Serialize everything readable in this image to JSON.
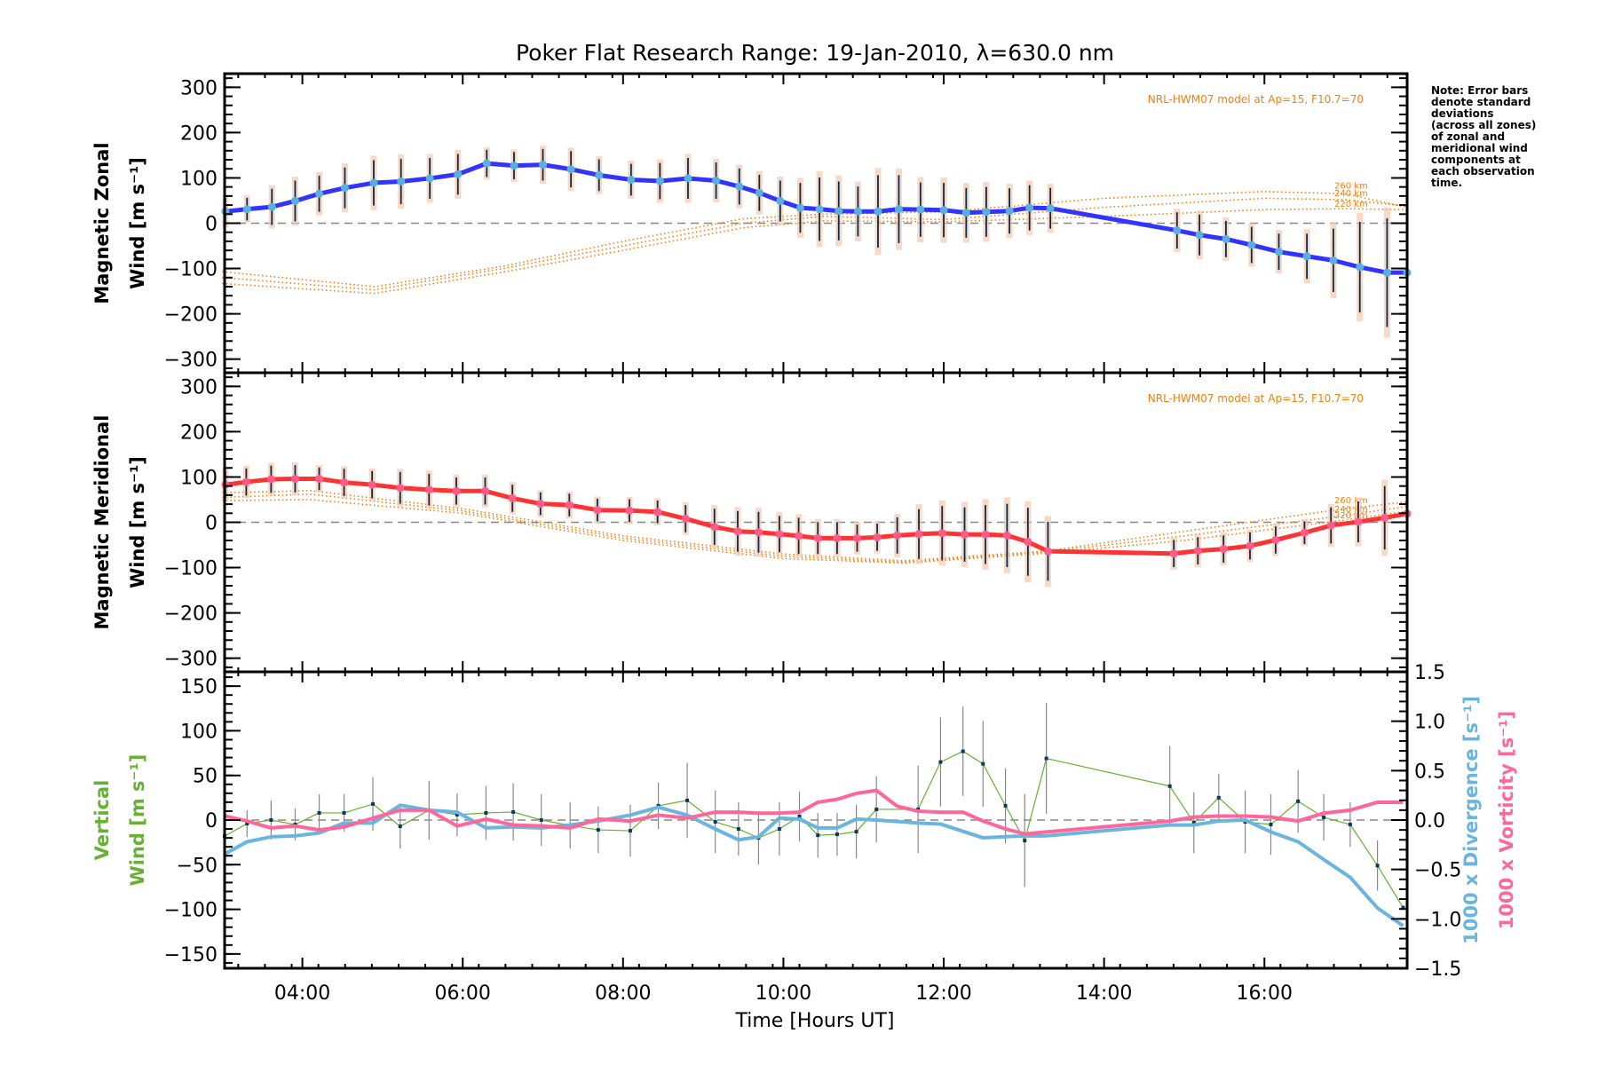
{
  "chart_data": {
    "type": "line",
    "title": "Poker Flat Research Range: 19-Jan-2010, λ=630.0 nm",
    "xlabel": "Time [Hours UT]",
    "xlim": [
      3.03,
      17.78
    ],
    "x_ticks": [
      {
        "value": 4,
        "label": "04:00"
      },
      {
        "value": 6,
        "label": "06:00"
      },
      {
        "value": 8,
        "label": "08:00"
      },
      {
        "value": 10,
        "label": "10:00"
      },
      {
        "value": 12,
        "label": "12:00"
      },
      {
        "value": 14,
        "label": "14:00"
      },
      {
        "value": 16,
        "label": "16:00"
      }
    ],
    "note": [
      "Note: Error bars",
      "denote standard",
      "deviations",
      "(across all zones)",
      "of zonal and",
      "meridional wind",
      "components at",
      "each observation",
      "time."
    ],
    "panels": [
      {
        "id": "zonal",
        "ylabel_lines": [
          "Magnetic Zonal",
          "Wind [m s⁻¹]"
        ],
        "ylabel_color": "#000000",
        "ylim": [
          -330,
          330
        ],
        "y_ticks": [
          300,
          200,
          100,
          0,
          -100,
          -200,
          -300
        ],
        "y_tick_labels": [
          "300",
          "200",
          "100",
          "0",
          "−100",
          "−200",
          "−300"
        ],
        "grid": false,
        "zero_line": true,
        "model_label": "NRL-HWM07 model at Ap=15, F10.7=70",
        "series": [
          {
            "name": "Magnetic Zonal Wind",
            "color": "#3333ff",
            "x": [
              3.04,
              3.31,
              3.62,
              3.91,
              4.21,
              4.53,
              4.89,
              5.23,
              5.59,
              5.94,
              6.3,
              6.64,
              7.0,
              7.35,
              7.7,
              8.1,
              8.46,
              8.81,
              9.16,
              9.45,
              9.7,
              9.96,
              10.21,
              10.45,
              10.69,
              10.93,
              11.18,
              11.44,
              11.71,
              12.0,
              12.28,
              12.53,
              12.82,
              13.07,
              13.33,
              14.91,
              15.19,
              15.52,
              15.84,
              16.18,
              16.53,
              16.86,
              17.19,
              17.53,
              17.78
            ],
            "y": [
              26,
              31,
              36,
              49,
              65,
              78,
              89,
              92,
              99,
              108,
              132,
              127,
              129,
              119,
              106,
              96,
              93,
              99,
              94,
              81,
              67,
              49,
              34,
              31,
              27,
              26,
              26,
              31,
              30,
              29,
              23,
              25,
              27,
              34,
              33,
              -16,
              -26,
              -35,
              -48,
              -63,
              -73,
              -82,
              -97,
              -109,
              -109
            ],
            "err": [
              30,
              25,
              40,
              45,
              40,
              45,
              50,
              50,
              45,
              45,
              30,
              30,
              35,
              40,
              35,
              35,
              40,
              45,
              40,
              40,
              40,
              45,
              55,
              70,
              65,
              55,
              80,
              75,
              60,
              60,
              55,
              55,
              50,
              50,
              45,
              40,
              45,
              40,
              40,
              40,
              50,
              70,
              100,
              120,
              0
            ]
          }
        ],
        "model": [
          {
            "name": "260 km",
            "x": [
              3.0,
              4.9,
              6.5,
              8.0,
              9.5,
              10.5,
              12.0,
              14.0,
              16.0,
              17.0,
              17.78
            ],
            "y": [
              -107,
              -140,
              -95,
              -40,
              10,
              20,
              25,
              55,
              70,
              65,
              35
            ]
          },
          {
            "name": "240 km",
            "x": [
              3.0,
              4.9,
              6.5,
              8.0,
              9.5,
              10.5,
              12.0,
              14.0,
              16.0,
              17.0,
              17.78
            ],
            "y": [
              -120,
              -147,
              -100,
              -50,
              0,
              15,
              8,
              35,
              55,
              52,
              38
            ]
          },
          {
            "name": "220 km",
            "x": [
              3.0,
              4.9,
              6.5,
              8.0,
              9.5,
              10.5,
              12.0,
              14.0,
              16.0,
              17.0,
              17.78
            ],
            "y": [
              -133,
              -155,
              -108,
              -60,
              -10,
              5,
              3,
              15,
              30,
              32,
              30
            ]
          }
        ]
      },
      {
        "id": "meridional",
        "ylabel_lines": [
          "Magnetic Meridional",
          "Wind [m s⁻¹]"
        ],
        "ylabel_color": "#000000",
        "ylim": [
          -330,
          330
        ],
        "y_ticks": [
          300,
          200,
          100,
          0,
          -100,
          -200,
          -300
        ],
        "y_tick_labels": [
          "300",
          "200",
          "100",
          "0",
          "−100",
          "−200",
          "−300"
        ],
        "grid": false,
        "zero_line": true,
        "model_label": "NRL-HWM07 model at Ap=15, F10.7=70",
        "series": [
          {
            "name": "Magnetic Meridional Wind",
            "color": "#ff3333",
            "x": [
              3.04,
              3.3,
              3.61,
              3.91,
              4.21,
              4.52,
              4.87,
              5.22,
              5.58,
              5.92,
              6.28,
              6.62,
              6.97,
              7.33,
              7.68,
              8.08,
              8.43,
              8.78,
              9.14,
              9.43,
              9.69,
              9.95,
              10.19,
              10.43,
              10.67,
              10.92,
              11.17,
              11.42,
              11.69,
              11.98,
              12.26,
              12.52,
              12.79,
              13.05,
              13.3,
              14.87,
              15.17,
              15.49,
              15.82,
              16.14,
              16.5,
              16.83,
              17.17,
              17.5,
              17.78
            ],
            "y": [
              83,
              89,
              95,
              96,
              96,
              88,
              83,
              76,
              72,
              69,
              69,
              53,
              41,
              38,
              27,
              26,
              23,
              8,
              -10,
              -20,
              -22,
              -26,
              -30,
              -35,
              -35,
              -35,
              -33,
              -29,
              -26,
              -24,
              -27,
              -27,
              -29,
              -43,
              -64,
              -69,
              -63,
              -59,
              -52,
              -39,
              -23,
              -7,
              1,
              10,
              19
            ],
            "err": [
              30,
              30,
              30,
              30,
              25,
              30,
              30,
              35,
              35,
              30,
              30,
              30,
              25,
              25,
              25,
              25,
              25,
              30,
              40,
              45,
              45,
              40,
              40,
              35,
              35,
              30,
              30,
              40,
              55,
              60,
              60,
              65,
              70,
              75,
              65,
              30,
              30,
              30,
              30,
              30,
              25,
              40,
              45,
              70,
              0
            ]
          }
        ],
        "model": [
          {
            "name": "260 km",
            "x": [
              3.0,
              4.1,
              6.0,
              8.0,
              10.0,
              11.5,
              13.3,
              15.0,
              17.0,
              17.78
            ],
            "y": [
              65,
              70,
              30,
              -30,
              -70,
              -85,
              -63,
              -20,
              30,
              45
            ]
          },
          {
            "name": "240 km",
            "x": [
              3.0,
              4.1,
              6.0,
              8.0,
              10.0,
              11.5,
              13.3,
              15.0,
              17.0,
              17.78
            ],
            "y": [
              55,
              62,
              25,
              -35,
              -75,
              -88,
              -65,
              -30,
              15,
              35
            ]
          },
          {
            "name": "220 km",
            "x": [
              3.0,
              4.1,
              6.0,
              8.0,
              10.0,
              11.5,
              13.3,
              15.0,
              17.0,
              17.78
            ],
            "y": [
              48,
              50,
              20,
              -40,
              -80,
              -90,
              -68,
              -40,
              5,
              25
            ]
          }
        ]
      },
      {
        "id": "vertical",
        "ylabel_lines": [
          "Vertical",
          "Wind [m s⁻¹]"
        ],
        "ylabel_color": "#66b032",
        "ylim": [
          -166,
          166
        ],
        "y_ticks": [
          150,
          100,
          50,
          0,
          -50,
          -100,
          -150
        ],
        "y_tick_labels": [
          "150",
          "100",
          "50",
          "0",
          "−50",
          "−100",
          "−150"
        ],
        "y2lim": [
          -1.5,
          1.5
        ],
        "y2_ticks": [
          1.5,
          1.0,
          0.5,
          0.0,
          -0.5,
          -1.0,
          -1.5
        ],
        "y2_tick_labels": [
          "1.5",
          "1.0",
          "0.5",
          "0.0",
          "−0.5",
          "−1.0",
          "−1.5"
        ],
        "y2labels": [
          {
            "text": "1000 x Divergence [s⁻¹]",
            "color": "#6ab4e0"
          },
          {
            "text": "1000 x Vorticity [s⁻¹]",
            "color": "#ff6699"
          }
        ],
        "grid": false,
        "zero_line": true,
        "series": [
          {
            "name": "Vertical Wind",
            "axis": "left",
            "color": "#66b032",
            "x": [
              3.03,
              3.31,
              3.61,
              3.91,
              4.21,
              4.52,
              4.88,
              5.22,
              5.58,
              5.93,
              6.29,
              6.63,
              6.98,
              7.34,
              7.69,
              8.09,
              8.44,
              8.8,
              9.15,
              9.44,
              9.69,
              9.95,
              10.2,
              10.43,
              10.67,
              10.91,
              11.16,
              11.68,
              11.96,
              12.24,
              12.49,
              12.77,
              13.01,
              13.28,
              14.82,
              15.12,
              15.43,
              15.76,
              16.08,
              16.42,
              16.74,
              17.07,
              17.41,
              17.73
            ],
            "y": [
              -18,
              -4,
              0,
              -5,
              8,
              8,
              18,
              -7,
              11,
              6,
              8,
              9,
              0,
              -6,
              -11,
              -12,
              16,
              22,
              -2,
              -10,
              -20,
              -10,
              4,
              -17,
              -16,
              -13,
              12,
              12,
              65,
              77,
              63,
              16,
              -23,
              69,
              38,
              -3,
              25,
              -2,
              -5,
              21,
              3,
              -5,
              -51,
              -98
            ],
            "err": [
              0,
              15,
              22,
              18,
              21,
              21,
              30,
              25,
              33,
              24,
              30,
              32,
              29,
              26,
              26,
              29,
              26,
              42,
              35,
              30,
              30,
              30,
              28,
              25,
              24,
              30,
              37,
              49,
              50,
              50,
              48,
              42,
              52,
              62,
              45,
              34,
              27,
              35,
              34,
              35,
              26,
              25,
              28,
              0
            ]
          },
          {
            "name": "1000 x Divergence",
            "axis": "right",
            "color": "#6ab4e0",
            "x": [
              3.04,
              3.31,
              3.61,
              3.91,
              4.21,
              4.52,
              4.88,
              5.22,
              5.58,
              5.93,
              6.29,
              6.63,
              6.98,
              7.34,
              7.69,
              8.09,
              8.44,
              8.8,
              9.15,
              9.44,
              9.69,
              9.95,
              10.2,
              10.43,
              10.67,
              10.91,
              11.16,
              11.68,
              11.96,
              12.49,
              13.01,
              13.28,
              14.82,
              15.12,
              15.43,
              15.76,
              16.08,
              16.42,
              16.74,
              17.07,
              17.41,
              17.73
            ],
            "y": [
              -0.34,
              -0.22,
              -0.17,
              -0.16,
              -0.13,
              -0.03,
              -0.03,
              0.15,
              0.1,
              0.08,
              -0.08,
              -0.07,
              -0.08,
              -0.05,
              -0.01,
              0.05,
              0.13,
              0.05,
              -0.09,
              -0.2,
              -0.17,
              0.02,
              0.01,
              -0.08,
              -0.08,
              0.01,
              0.0,
              -0.03,
              -0.04,
              -0.18,
              -0.16,
              -0.16,
              -0.05,
              -0.05,
              -0.01,
              0.0,
              -0.12,
              -0.22,
              -0.4,
              -0.58,
              -0.89,
              -1.07
            ]
          },
          {
            "name": "1000 x Vorticity",
            "axis": "right",
            "color": "#ff6699",
            "x": [
              3.04,
              3.31,
              3.61,
              3.91,
              4.21,
              4.52,
              4.88,
              5.22,
              5.58,
              5.93,
              6.29,
              6.63,
              6.98,
              7.34,
              7.69,
              8.09,
              8.44,
              8.8,
              9.15,
              9.44,
              9.69,
              9.95,
              10.2,
              10.43,
              10.67,
              10.91,
              11.16,
              11.42,
              11.68,
              11.96,
              12.24,
              12.49,
              12.77,
              13.01,
              13.28,
              14.82,
              15.12,
              15.43,
              15.76,
              16.08,
              16.42,
              16.74,
              17.07,
              17.41,
              17.73
            ],
            "y": [
              0.04,
              -0.01,
              -0.08,
              -0.06,
              -0.1,
              -0.07,
              0.02,
              0.1,
              0.1,
              -0.06,
              0.01,
              -0.05,
              -0.06,
              -0.08,
              0.01,
              -0.01,
              0.05,
              0.02,
              0.08,
              0.08,
              0.07,
              0.07,
              0.08,
              0.18,
              0.21,
              0.27,
              0.3,
              0.14,
              0.09,
              0.08,
              0.08,
              -0.01,
              -0.09,
              -0.14,
              -0.12,
              -0.01,
              0.03,
              0.04,
              0.04,
              0.03,
              -0.01,
              0.07,
              0.1,
              0.18,
              0.18
            ]
          }
        ]
      }
    ]
  }
}
